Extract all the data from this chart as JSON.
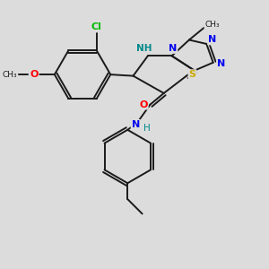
{
  "background_color": "#dcdcdc",
  "bond_color": "#1a1a1a",
  "atom_colors": {
    "Cl": "#00bb00",
    "O": "#ff0000",
    "N": "#0000ee",
    "NH": "#008888",
    "S": "#ccaa00",
    "C": "#1a1a1a",
    "H": "#1a1a1a"
  }
}
